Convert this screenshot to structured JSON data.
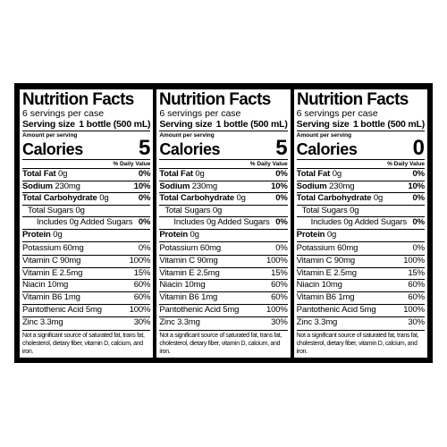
{
  "panels": [
    {
      "title": "Nutrition Facts",
      "servings": "6 servings per case",
      "serving_size_label": "Serving size",
      "serving_size_value": "1 bottle (500 mL)",
      "amount_per_serving": "Amount per serving",
      "calories_label": "Calories",
      "calories_value": "5",
      "daily_value_header": "% Daily Value",
      "total_fat": {
        "label": "Total Fat",
        "amount": "0g",
        "dv": "0%"
      },
      "sodium": {
        "label": "Sodium",
        "amount": "230mg",
        "dv": "10%"
      },
      "total_carb": {
        "label": "Total Carbohydrate",
        "amount": "0g",
        "dv": "0%"
      },
      "total_sugars": {
        "text": "Total Sugars 0g"
      },
      "added_sugars": {
        "text": "Includes 0g Added Sugars",
        "dv": "0%"
      },
      "protein": {
        "label": "Protein",
        "amount": "0g"
      },
      "vitamins": [
        {
          "name": "Potassium 60mg",
          "dv": "0%"
        },
        {
          "name": "Vitamin C 90mg",
          "dv": "100%"
        },
        {
          "name": "Vitamin E 2.5mg",
          "dv": "15%"
        },
        {
          "name": "Niacin 10mg",
          "dv": "60%"
        },
        {
          "name": "Vitamin B6 1mg",
          "dv": "60%"
        },
        {
          "name": "Pantothenic Acid 5mg",
          "dv": "100%"
        },
        {
          "name": "Zinc 3.3mg",
          "dv": "30%"
        }
      ],
      "footnote": "Not a significant source of saturated fat, trans fat, cholesterol, dietary fiber, vitamin D, calcium, and iron."
    },
    {
      "title": "Nutrition Facts",
      "servings": "6 servings per case",
      "serving_size_label": "Serving size",
      "serving_size_value": "1 bottle (500 mL)",
      "amount_per_serving": "Amount per serving",
      "calories_label": "Calories",
      "calories_value": "5",
      "daily_value_header": "% Daily Value",
      "total_fat": {
        "label": "Total Fat",
        "amount": "0g",
        "dv": "0%"
      },
      "sodium": {
        "label": "Sodium",
        "amount": "230mg",
        "dv": "10%"
      },
      "total_carb": {
        "label": "Total Carbohydrate",
        "amount": "0g",
        "dv": "0%"
      },
      "total_sugars": {
        "text": "Total Sugars 0g"
      },
      "added_sugars": {
        "text": "Includes 0g Added Sugars",
        "dv": "0%"
      },
      "protein": {
        "label": "Protein",
        "amount": "0g"
      },
      "vitamins": [
        {
          "name": "Potassium 60mg",
          "dv": "0%"
        },
        {
          "name": "Vitamin C 90mg",
          "dv": "100%"
        },
        {
          "name": "Vitamin E 2.5mg",
          "dv": "15%"
        },
        {
          "name": "Niacin 10mg",
          "dv": "60%"
        },
        {
          "name": "Vitamin B6 1mg",
          "dv": "60%"
        },
        {
          "name": "Pantothenic Acid 5mg",
          "dv": "100%"
        },
        {
          "name": "Zinc 3.3mg",
          "dv": "30%"
        }
      ],
      "footnote": "Not a significant source of saturated fat, trans fat, cholesterol, dietary fiber, vitamin D, calcium, and iron."
    },
    {
      "title": "Nutrition Facts",
      "servings": "6 servings per case",
      "serving_size_label": "Serving size",
      "serving_size_value": "1 bottle (500 mL)",
      "amount_per_serving": "Amount per serving",
      "calories_label": "Calories",
      "calories_value": "0",
      "daily_value_header": "% Daily Value",
      "total_fat": {
        "label": "Total Fat",
        "amount": "0g",
        "dv": "0%"
      },
      "sodium": {
        "label": "Sodium",
        "amount": "230mg",
        "dv": "10%"
      },
      "total_carb": {
        "label": "Total Carbohydrate",
        "amount": "0g",
        "dv": "0%"
      },
      "total_sugars": {
        "text": "Total Sugars 0g"
      },
      "added_sugars": {
        "text": "Includes 0g Added Sugars",
        "dv": "0%"
      },
      "protein": {
        "label": "Protein",
        "amount": "0g"
      },
      "vitamins": [
        {
          "name": "Potassium 60mg",
          "dv": "0%"
        },
        {
          "name": "Vitamin C 90mg",
          "dv": "100%"
        },
        {
          "name": "Vitamin E 2.5mg",
          "dv": "15%"
        },
        {
          "name": "Niacin 10mg",
          "dv": "60%"
        },
        {
          "name": "Vitamin B6 1mg",
          "dv": "60%"
        },
        {
          "name": "Pantothenic Acid 5mg",
          "dv": "100%"
        },
        {
          "name": "Zinc 3.3mg",
          "dv": "30%"
        }
      ],
      "footnote": "Not a significant source of saturated fat, trans fat, cholesterol, dietary fiber, vitamin D, calcium, and iron."
    }
  ]
}
